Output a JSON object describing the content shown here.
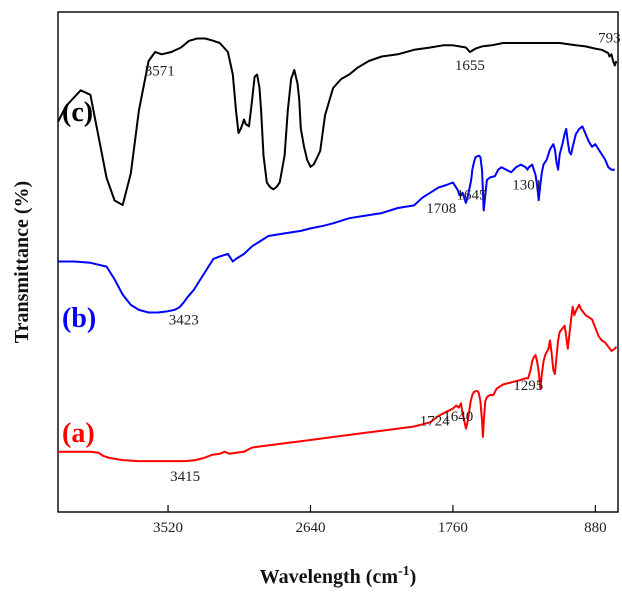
{
  "chart_data": {
    "type": "line",
    "xlabel": "Wavelength (cm",
    "xlabel_unit_exp": "-1",
    "xlabel_close": ")",
    "ylabel": "Transmittance (%)",
    "x_axis": {
      "reversed": true,
      "xlim": [
        4200,
        740
      ],
      "ticks": [
        "3520",
        "2640",
        "1760",
        "880"
      ]
    },
    "y_ticks": "none",
    "series": [
      {
        "name": "(c)",
        "color": "#000000",
        "points": [
          [
            4200,
            65
          ],
          [
            4150,
            72
          ],
          [
            4060,
            79
          ],
          [
            4000,
            77
          ],
          [
            3900,
            40
          ],
          [
            3850,
            30
          ],
          [
            3800,
            28
          ],
          [
            3750,
            42
          ],
          [
            3700,
            70
          ],
          [
            3640,
            92
          ],
          [
            3600,
            96
          ],
          [
            3560,
            95
          ],
          [
            3500,
            96
          ],
          [
            3440,
            98
          ],
          [
            3390,
            101
          ],
          [
            3340,
            102
          ],
          [
            3290,
            102
          ],
          [
            3240,
            101
          ],
          [
            3200,
            100
          ],
          [
            3150,
            96
          ],
          [
            3120,
            86
          ],
          [
            3100,
            70
          ],
          [
            3085,
            60
          ],
          [
            3070,
            62
          ],
          [
            3050,
            66
          ],
          [
            3040,
            64
          ],
          [
            3020,
            63
          ],
          [
            3000,
            75
          ],
          [
            2985,
            85
          ],
          [
            2970,
            86
          ],
          [
            2955,
            80
          ],
          [
            2945,
            70
          ],
          [
            2930,
            50
          ],
          [
            2910,
            38
          ],
          [
            2890,
            36
          ],
          [
            2870,
            35
          ],
          [
            2850,
            36
          ],
          [
            2830,
            38
          ],
          [
            2800,
            50
          ],
          [
            2780,
            70
          ],
          [
            2760,
            84
          ],
          [
            2740,
            88
          ],
          [
            2720,
            82
          ],
          [
            2710,
            75
          ],
          [
            2700,
            62
          ],
          [
            2680,
            54
          ],
          [
            2660,
            48
          ],
          [
            2640,
            45
          ],
          [
            2620,
            46
          ],
          [
            2600,
            49
          ],
          [
            2580,
            52
          ],
          [
            2550,
            68
          ],
          [
            2500,
            80
          ],
          [
            2450,
            84
          ],
          [
            2400,
            86
          ],
          [
            2350,
            89
          ],
          [
            2280,
            92
          ],
          [
            2200,
            94
          ],
          [
            2100,
            95
          ],
          [
            2000,
            97
          ],
          [
            1900,
            98
          ],
          [
            1820,
            99
          ],
          [
            1780,
            99
          ],
          [
            1760,
            99
          ],
          [
            1720,
            98.5
          ],
          [
            1680,
            98
          ],
          [
            1655,
            96
          ],
          [
            1620,
            97.5
          ],
          [
            1580,
            98.5
          ],
          [
            1520,
            99
          ],
          [
            1450,
            100
          ],
          [
            1380,
            100
          ],
          [
            1300,
            100
          ],
          [
            1200,
            100
          ],
          [
            1100,
            100
          ],
          [
            1000,
            99
          ],
          [
            940,
            98.5
          ],
          [
            880,
            97.5
          ],
          [
            840,
            97
          ],
          [
            800,
            95.5
          ],
          [
            793,
            94
          ],
          [
            780,
            95
          ],
          [
            770,
            92
          ],
          [
            760,
            90
          ],
          [
            750,
            92
          ]
        ],
        "label_pos": [
          4200,
          85
        ]
      },
      {
        "name": "(b)",
        "color": "#0000ff",
        "points": [
          [
            4200,
            30
          ],
          [
            4100,
            30
          ],
          [
            4000,
            29.5
          ],
          [
            3900,
            28
          ],
          [
            3850,
            23
          ],
          [
            3800,
            17
          ],
          [
            3750,
            13
          ],
          [
            3700,
            11
          ],
          [
            3640,
            10
          ],
          [
            3580,
            10
          ],
          [
            3520,
            10.5
          ],
          [
            3480,
            11
          ],
          [
            3450,
            12
          ],
          [
            3423,
            14
          ],
          [
            3400,
            16
          ],
          [
            3360,
            19
          ],
          [
            3320,
            23
          ],
          [
            3280,
            27
          ],
          [
            3240,
            31
          ],
          [
            3200,
            32
          ],
          [
            3150,
            33
          ],
          [
            3120,
            30
          ],
          [
            3100,
            31
          ],
          [
            3050,
            33
          ],
          [
            3000,
            36
          ],
          [
            2950,
            38
          ],
          [
            2900,
            40
          ],
          [
            2800,
            41
          ],
          [
            2700,
            42
          ],
          [
            2640,
            43
          ],
          [
            2560,
            44
          ],
          [
            2500,
            45
          ],
          [
            2400,
            47
          ],
          [
            2300,
            48
          ],
          [
            2200,
            49
          ],
          [
            2100,
            51
          ],
          [
            2000,
            52
          ],
          [
            1950,
            55
          ],
          [
            1900,
            57
          ],
          [
            1850,
            59
          ],
          [
            1800,
            60
          ],
          [
            1760,
            61
          ],
          [
            1730,
            58
          ],
          [
            1720,
            56
          ],
          [
            1708,
            56
          ],
          [
            1700,
            57
          ],
          [
            1690,
            55
          ],
          [
            1680,
            53
          ],
          [
            1670,
            55
          ],
          [
            1660,
            58
          ],
          [
            1650,
            61
          ],
          [
            1645,
            63
          ],
          [
            1640,
            66
          ],
          [
            1630,
            69
          ],
          [
            1620,
            71
          ],
          [
            1600,
            71.5
          ],
          [
            1590,
            71
          ],
          [
            1580,
            66
          ],
          [
            1575,
            58
          ],
          [
            1570,
            50
          ],
          [
            1560,
            56
          ],
          [
            1550,
            62
          ],
          [
            1530,
            63
          ],
          [
            1500,
            63.5
          ],
          [
            1480,
            66
          ],
          [
            1460,
            67
          ],
          [
            1430,
            66
          ],
          [
            1400,
            65
          ],
          [
            1370,
            67
          ],
          [
            1340,
            68
          ],
          [
            1310,
            67
          ],
          [
            1300,
            66
          ],
          [
            1290,
            67
          ],
          [
            1270,
            68
          ],
          [
            1260,
            66
          ],
          [
            1250,
            64
          ],
          [
            1240,
            60
          ],
          [
            1230,
            54
          ],
          [
            1220,
            60
          ],
          [
            1210,
            65
          ],
          [
            1200,
            68
          ],
          [
            1180,
            70
          ],
          [
            1160,
            74
          ],
          [
            1140,
            76
          ],
          [
            1130,
            74
          ],
          [
            1120,
            69
          ],
          [
            1110,
            66
          ],
          [
            1100,
            72
          ],
          [
            1080,
            77
          ],
          [
            1070,
            80
          ],
          [
            1060,
            82
          ],
          [
            1050,
            77
          ],
          [
            1040,
            73
          ],
          [
            1030,
            72
          ],
          [
            1020,
            75
          ],
          [
            1000,
            80
          ],
          [
            980,
            82
          ],
          [
            960,
            83
          ],
          [
            940,
            80
          ],
          [
            920,
            77
          ],
          [
            900,
            75
          ],
          [
            880,
            76
          ],
          [
            850,
            73
          ],
          [
            820,
            70
          ],
          [
            800,
            67
          ],
          [
            780,
            66
          ],
          [
            760,
            66
          ]
        ],
        "label_pos": [
          4200,
          40
        ]
      },
      {
        "name": "(a)",
        "color": "#ff0000",
        "points": [
          [
            4200,
            3
          ],
          [
            4100,
            3
          ],
          [
            4000,
            3
          ],
          [
            3950,
            2.5
          ],
          [
            3920,
            1
          ],
          [
            3880,
            0
          ],
          [
            3800,
            -1
          ],
          [
            3700,
            -1.5
          ],
          [
            3600,
            -1.5
          ],
          [
            3500,
            -1.5
          ],
          [
            3415,
            -1.5
          ],
          [
            3350,
            -1
          ],
          [
            3300,
            0
          ],
          [
            3250,
            1.5
          ],
          [
            3200,
            2
          ],
          [
            3170,
            3
          ],
          [
            3140,
            2
          ],
          [
            3100,
            2.5
          ],
          [
            3050,
            3
          ],
          [
            3000,
            5
          ],
          [
            2900,
            6
          ],
          [
            2800,
            7
          ],
          [
            2700,
            8
          ],
          [
            2600,
            9
          ],
          [
            2500,
            10
          ],
          [
            2400,
            11
          ],
          [
            2300,
            12
          ],
          [
            2200,
            13
          ],
          [
            2100,
            14
          ],
          [
            2000,
            15
          ],
          [
            1900,
            17
          ],
          [
            1850,
            20
          ],
          [
            1800,
            22
          ],
          [
            1760,
            23.5
          ],
          [
            1740,
            25
          ],
          [
            1724,
            24
          ],
          [
            1710,
            26
          ],
          [
            1700,
            21
          ],
          [
            1690,
            18
          ],
          [
            1680,
            14
          ],
          [
            1670,
            17
          ],
          [
            1660,
            22
          ],
          [
            1650,
            27
          ],
          [
            1640,
            30
          ],
          [
            1630,
            31.5
          ],
          [
            1610,
            32
          ],
          [
            1600,
            31
          ],
          [
            1590,
            27
          ],
          [
            1580,
            18
          ],
          [
            1575,
            10
          ],
          [
            1570,
            17
          ],
          [
            1560,
            27
          ],
          [
            1550,
            29
          ],
          [
            1530,
            30
          ],
          [
            1510,
            30
          ],
          [
            1490,
            33
          ],
          [
            1470,
            34
          ],
          [
            1450,
            35
          ],
          [
            1400,
            36
          ],
          [
            1350,
            37
          ],
          [
            1310,
            38
          ],
          [
            1300,
            38
          ],
          [
            1295,
            38
          ],
          [
            1280,
            42
          ],
          [
            1270,
            46
          ],
          [
            1260,
            48
          ],
          [
            1250,
            49
          ],
          [
            1240,
            46
          ],
          [
            1230,
            41
          ],
          [
            1220,
            33
          ],
          [
            1210,
            40
          ],
          [
            1200,
            46
          ],
          [
            1190,
            49
          ],
          [
            1170,
            52
          ],
          [
            1160,
            56
          ],
          [
            1150,
            50
          ],
          [
            1140,
            42
          ],
          [
            1130,
            40
          ],
          [
            1120,
            48
          ],
          [
            1110,
            56
          ],
          [
            1100,
            60
          ],
          [
            1080,
            62
          ],
          [
            1070,
            63
          ],
          [
            1060,
            58
          ],
          [
            1050,
            52
          ],
          [
            1040,
            59
          ],
          [
            1030,
            66
          ],
          [
            1020,
            72
          ],
          [
            1010,
            68
          ],
          [
            1000,
            70
          ],
          [
            980,
            73
          ],
          [
            970,
            71
          ],
          [
            950,
            69
          ],
          [
            940,
            68
          ],
          [
            920,
            67
          ],
          [
            900,
            66
          ],
          [
            880,
            62
          ],
          [
            860,
            58
          ],
          [
            840,
            56
          ],
          [
            820,
            55
          ],
          [
            800,
            53
          ],
          [
            780,
            51
          ],
          [
            760,
            52
          ],
          [
            750,
            53
          ]
        ],
        "label_pos": [
          4200,
          13
        ]
      }
    ],
    "annotations": [
      {
        "text": "3571",
        "series": "(c)",
        "x": 3571
      },
      {
        "text": "1655",
        "series": "(c)",
        "x": 1655
      },
      {
        "text": "793",
        "series": "(c)",
        "x": 793
      },
      {
        "text": "1708",
        "series": "(b)",
        "x": 1708
      },
      {
        "text": "1645",
        "series": "(b)",
        "x": 1645
      },
      {
        "text": "1301",
        "series": "(b)",
        "x": 1301
      },
      {
        "text": "3423",
        "series": "(b)",
        "x": 3423
      },
      {
        "text": "1724",
        "series": "(a)",
        "x": 1724
      },
      {
        "text": "1640",
        "series": "(a)",
        "x": 1640
      },
      {
        "text": "1295",
        "series": "(a)",
        "x": 1295
      },
      {
        "text": "3415",
        "series": "(a)",
        "x": 3415
      }
    ]
  }
}
